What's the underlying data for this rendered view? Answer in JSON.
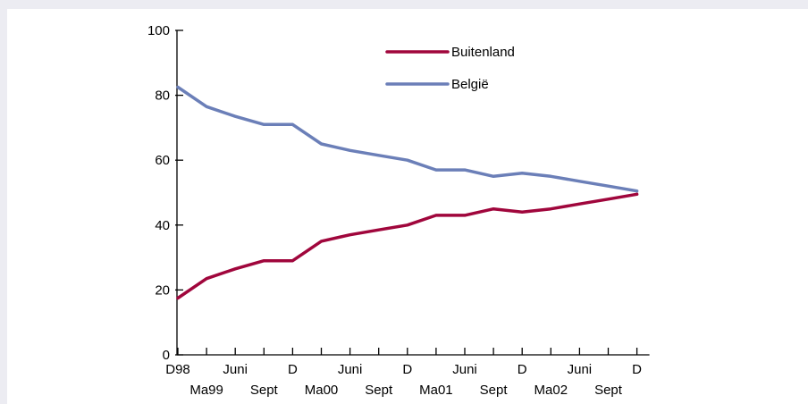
{
  "chart_data": {
    "type": "line",
    "categories": [
      "D98",
      "Ma99",
      "Juni",
      "Sept",
      "D",
      "Ma00",
      "Juni",
      "Sept",
      "D",
      "Ma01",
      "Juni",
      "Sept",
      "D",
      "Ma02",
      "Juni",
      "Sept",
      "D"
    ],
    "series": [
      {
        "name": "Buitenland",
        "color": "#a0063c",
        "values": [
          17.5,
          23.5,
          26.5,
          29,
          29,
          35,
          37,
          38.5,
          40,
          43,
          43,
          45,
          44,
          45,
          46.5,
          48,
          49.5
        ]
      },
      {
        "name": "België",
        "color": "#6b7fb8",
        "values": [
          82.5,
          76.5,
          73.5,
          71,
          71,
          65,
          63,
          61.5,
          60,
          57,
          57,
          55,
          56,
          55,
          53.5,
          52,
          50.5
        ]
      }
    ],
    "yticks": [
      0,
      20,
      40,
      60,
      80,
      100
    ],
    "ylim": [
      0,
      100
    ],
    "title": "",
    "xlabel": "",
    "ylabel": "",
    "grid": false,
    "legend": "top-center"
  }
}
